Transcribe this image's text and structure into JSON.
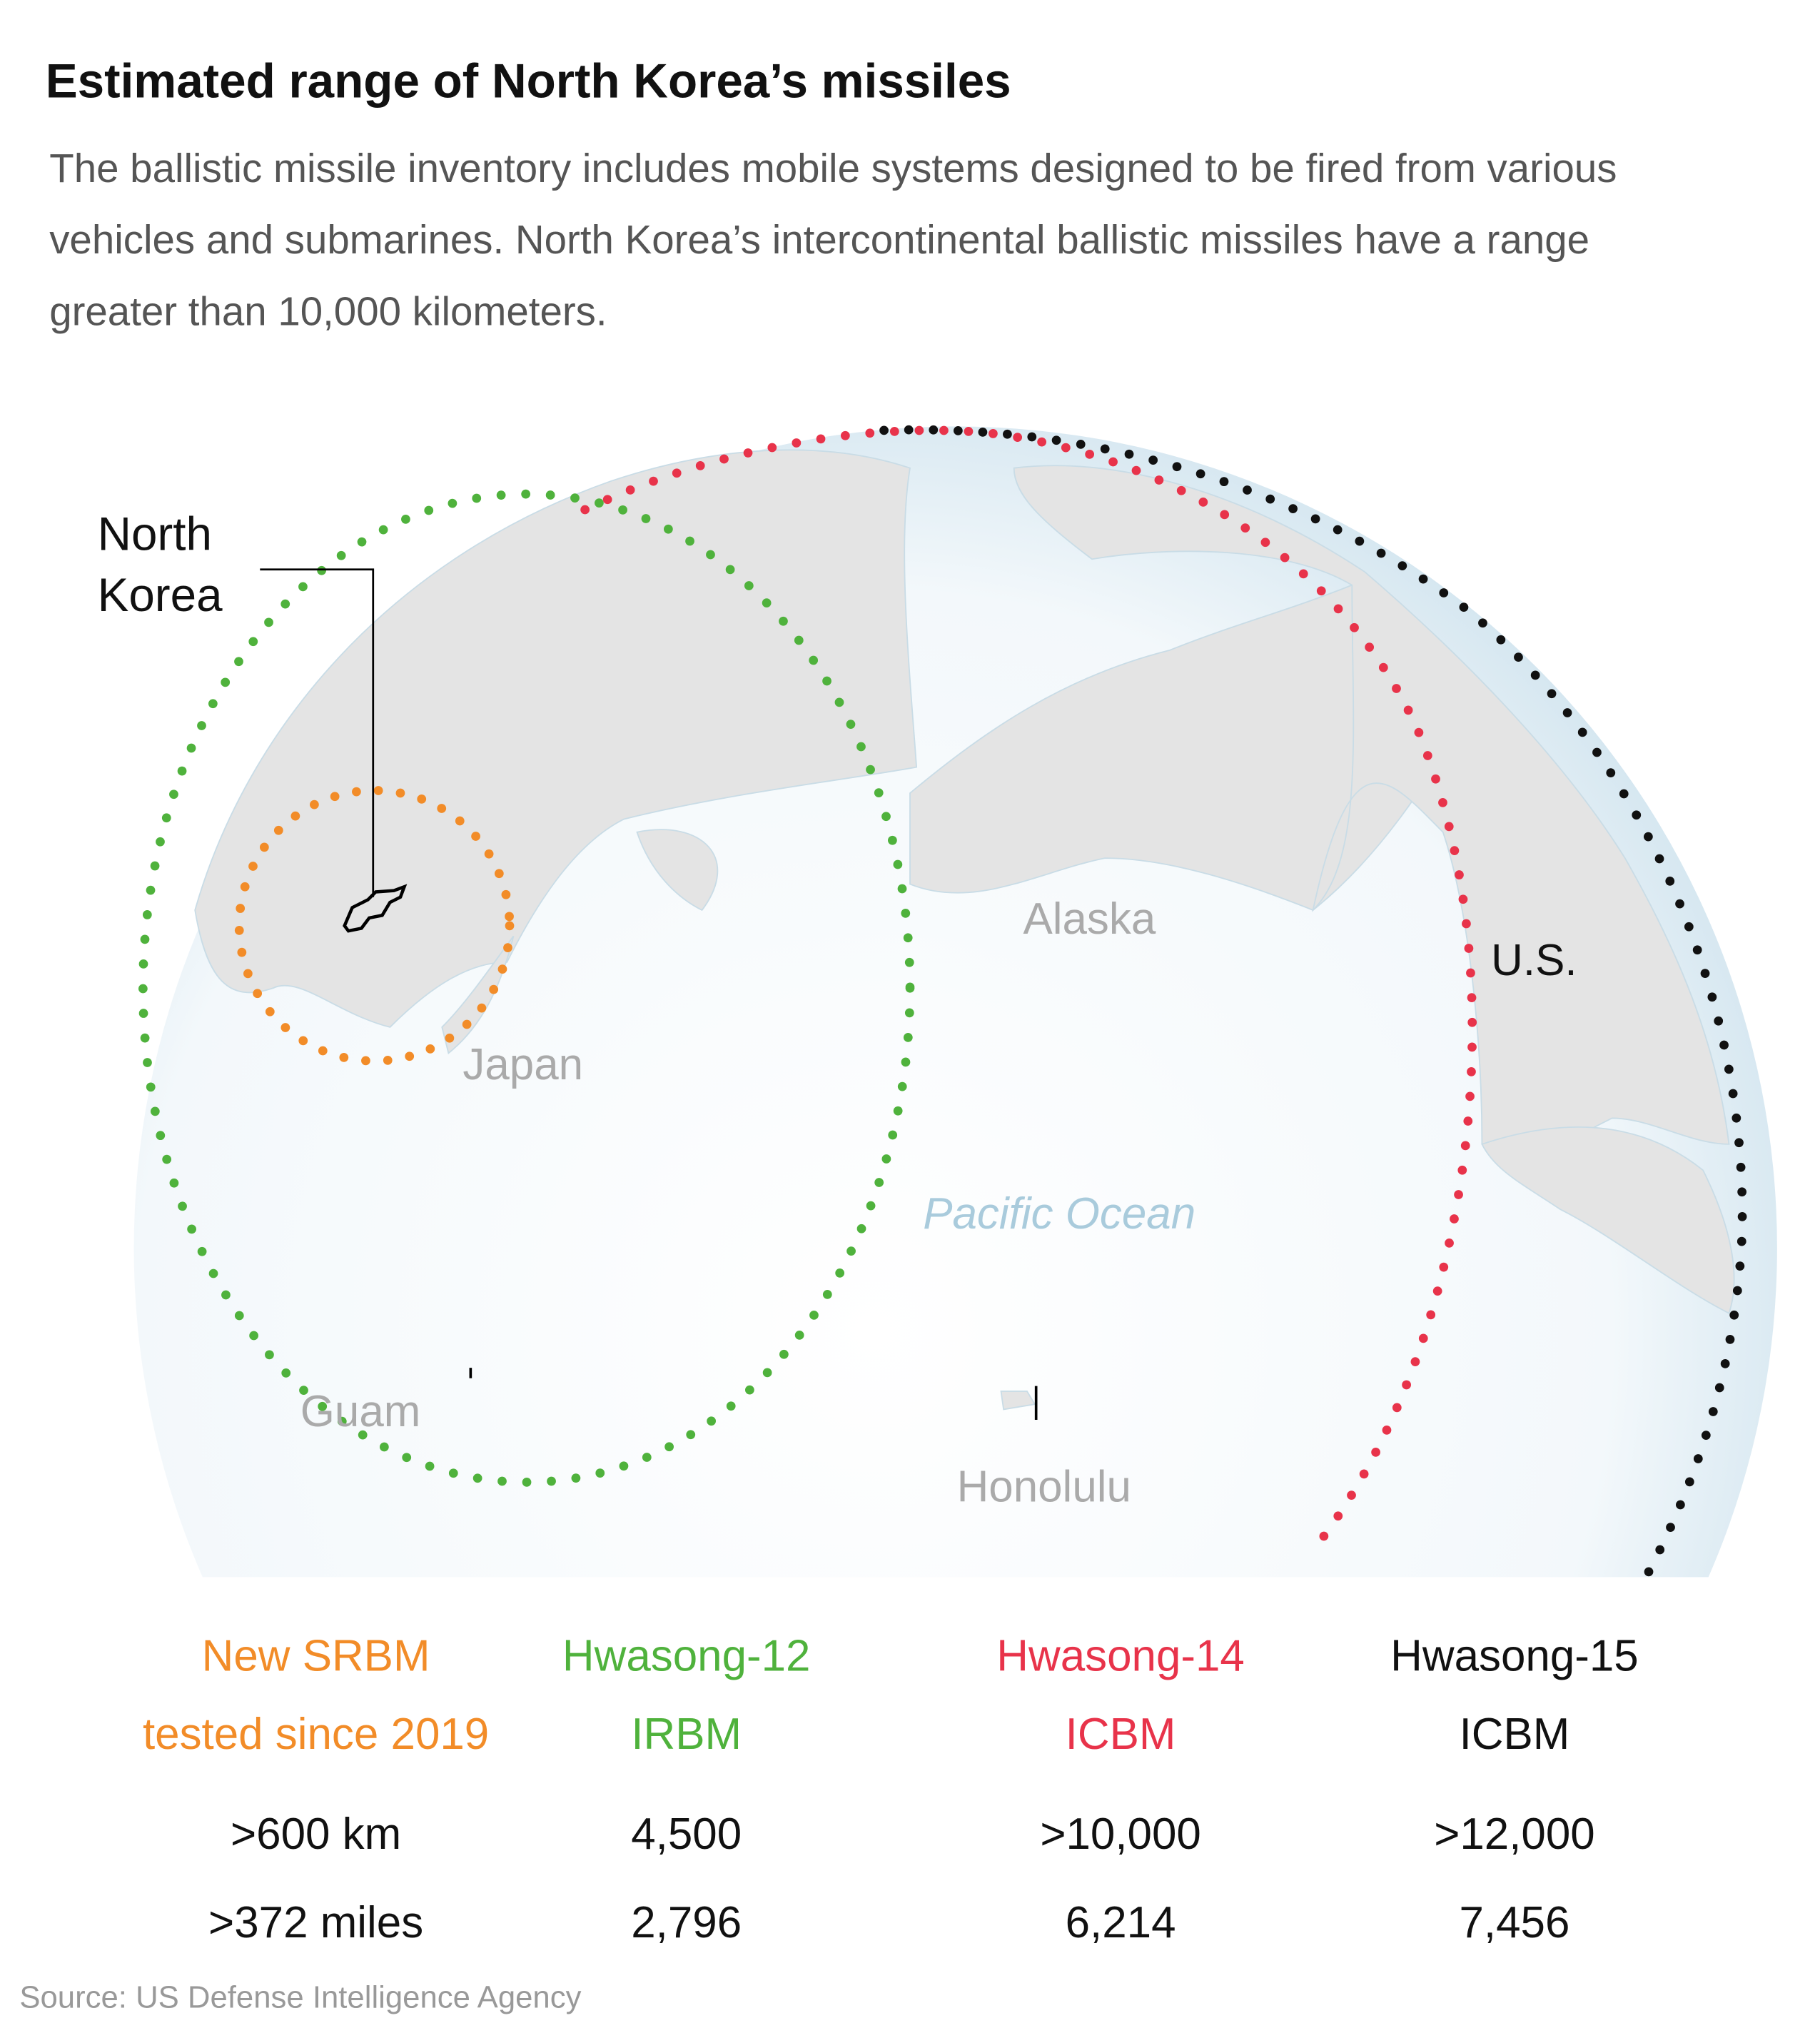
{
  "title": "Estimated range of North Korea’s missiles",
  "subtitle_lines": [
    "The ballistic missile inventory includes mobile systems designed to be fired from various",
    "vehicles and submarines. North Korea’s intercontinental ballistic missiles have a range",
    "greater than 10,000 kilometers."
  ],
  "map_labels": {
    "north_korea": [
      "North",
      "Korea"
    ],
    "japan": "Japan",
    "alaska": "Alaska",
    "pacific_ocean": "Pacific Ocean",
    "guam": "Guam",
    "honolulu": "Honolulu",
    "us": "U.S."
  },
  "missiles": [
    {
      "name": "New SRBM",
      "type": "tested since 2019",
      "km": ">600 km",
      "miles": ">372 miles",
      "color": "#f28c28"
    },
    {
      "name": "Hwasong-12",
      "type": "IRBM",
      "km": "4,500",
      "miles": "2,796",
      "color": "#4fb23c"
    },
    {
      "name": "Hwasong-14",
      "type": "ICBM",
      "km": ">10,000",
      "miles": "6,214",
      "color": "#e8334a"
    },
    {
      "name": "Hwasong-15",
      "type": "ICBM",
      "km": ">12,000",
      "miles": "7,456",
      "color": "#111111"
    }
  ],
  "source": "Source: US Defense Intelligence Agency"
}
